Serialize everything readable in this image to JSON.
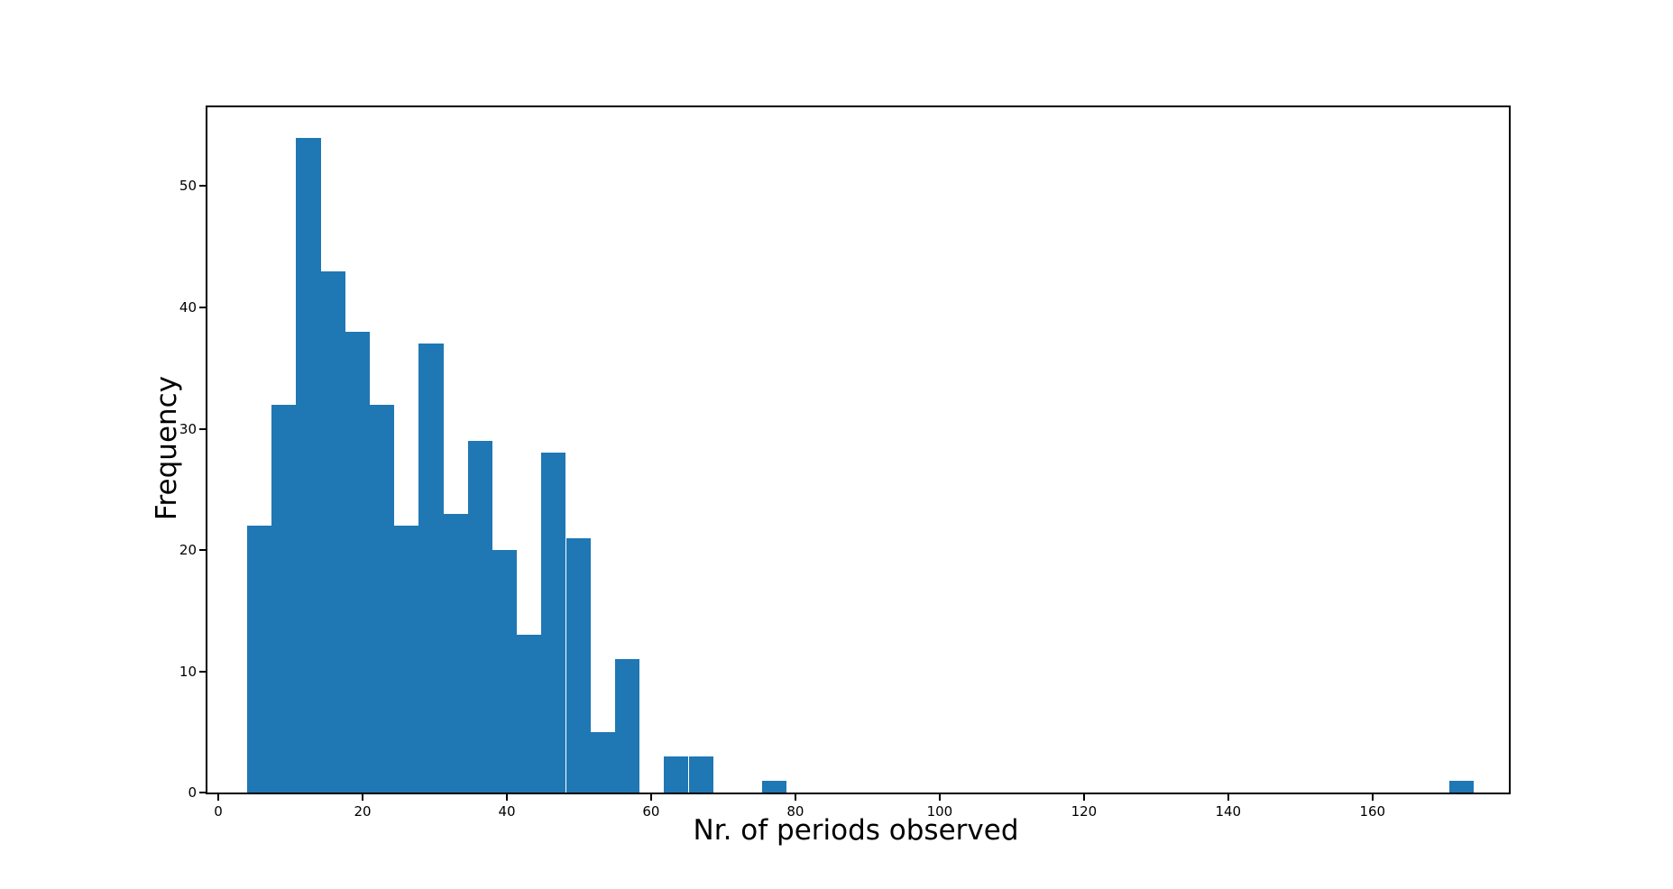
{
  "chart_data": {
    "type": "bar",
    "subtype": "histogram",
    "title": "",
    "xlabel": "Nr. of periods observed",
    "ylabel": "Frequency",
    "bin_start": 4,
    "bin_width": 3.4,
    "counts": [
      22,
      32,
      54,
      43,
      38,
      32,
      22,
      37,
      23,
      29,
      20,
      13,
      28,
      21,
      5,
      11,
      0,
      3,
      3,
      0,
      0,
      1,
      0,
      0,
      0,
      0,
      0,
      0,
      0,
      0,
      0,
      0,
      0,
      0,
      0,
      0,
      0,
      0,
      0,
      0,
      0,
      0,
      0,
      0,
      0,
      0,
      0,
      0,
      0,
      1
    ],
    "x_ticks": [
      0,
      20,
      40,
      60,
      80,
      100,
      120,
      140,
      160
    ],
    "y_ticks": [
      0,
      10,
      20,
      30,
      40,
      50
    ],
    "xlim": [
      -1.5,
      178.9
    ],
    "ylim": [
      0,
      56.5
    ],
    "bar_color": "#1f77b4",
    "spine_color": "#000000",
    "grid": false,
    "legend": null
  }
}
